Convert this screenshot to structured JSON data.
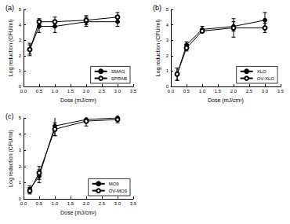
{
  "chart_data": [
    {
      "type": "line",
      "title": "(a)",
      "x_label": "Dose (mJ/cm²)",
      "y_label": "Log reduction (CFU/ml)",
      "xlim": [
        0,
        3.5
      ],
      "xticks": [
        {
          "value": 0,
          "label": "0.0"
        },
        {
          "value": 0.5,
          "label": "0.5"
        },
        {
          "value": 1,
          "label": "1.0"
        },
        {
          "value": 1.5,
          "label": "1.5"
        },
        {
          "value": 2,
          "label": "2.0"
        },
        {
          "value": 2.5,
          "label": "2.5"
        },
        {
          "value": 3,
          "label": "3.0"
        },
        {
          "value": 3.5,
          "label": "3.5"
        }
      ],
      "ylim": [
        0,
        5
      ],
      "yticks": [
        0,
        1,
        2,
        3,
        4,
        5
      ],
      "grid": false,
      "legend": "lower right",
      "x": [
        0.2,
        0.5,
        1,
        2,
        3
      ],
      "series": [
        {
          "name": "SMAG",
          "color": "#000000",
          "marker": "circle",
          "line_style": "solid",
          "values": [
            2.4,
            3.9,
            3.9,
            4.2,
            4.2
          ],
          "errors": [
            0.4,
            0.4,
            0.4,
            0.3,
            0.3
          ]
        },
        {
          "name": "SPRAB",
          "color": "#000000",
          "marker": "open_circle",
          "line_style": "solid",
          "values": [
            2.4,
            4.2,
            4.2,
            4.3,
            4.5
          ],
          "errors": [
            0.3,
            0.2,
            0.3,
            0.3,
            0.3
          ]
        }
      ]
    },
    {
      "type": "line",
      "title": "(b)",
      "x_label": "Dose (mJ/cm²)",
      "y_label": "Log reduction (CFU/ml)",
      "xlim": [
        0,
        3.5
      ],
      "xticks": [
        {
          "value": 0,
          "label": "0.0"
        },
        {
          "value": 0.5,
          "label": "0.5"
        },
        {
          "value": 1,
          "label": "1.0"
        },
        {
          "value": 1.5,
          "label": "1.5"
        },
        {
          "value": 2,
          "label": "2.0"
        },
        {
          "value": 2.5,
          "label": "2.5"
        },
        {
          "value": 3,
          "label": "3.0"
        },
        {
          "value": 3.5,
          "label": "3.5"
        }
      ],
      "ylim": [
        0,
        5
      ],
      "yticks": [
        0,
        1,
        2,
        3,
        4,
        5
      ],
      "grid": false,
      "legend": "lower right",
      "x": [
        0.2,
        0.5,
        1,
        2,
        3
      ],
      "series": [
        {
          "name": "XLO",
          "color": "#000000",
          "marker": "circle",
          "line_style": "solid",
          "values": [
            0.8,
            2.7,
            3.7,
            3.9,
            4.3
          ],
          "errors": [
            0.4,
            0.2,
            0.2,
            0.3,
            0.5
          ]
        },
        {
          "name": "OV-XLO",
          "color": "#000000",
          "marker": "open_circle",
          "line_style": "solid",
          "values": [
            0.8,
            2.5,
            3.6,
            3.8,
            3.8
          ],
          "errors": [
            0.4,
            0.2,
            0.1,
            0.6,
            0.3
          ]
        }
      ]
    },
    {
      "type": "line",
      "title": "(c)",
      "x_label": "Dose (mJ/cm²)",
      "y_label": "Log reduction (CFU/ml)",
      "xlim": [
        0,
        3.5
      ],
      "xticks": [
        {
          "value": 0,
          "label": "0.0"
        },
        {
          "value": 0.5,
          "label": "0.5"
        },
        {
          "value": 1,
          "label": "1.0"
        },
        {
          "value": 1.5,
          "label": "1.5"
        },
        {
          "value": 2,
          "label": "2.0"
        },
        {
          "value": 2.5,
          "label": "2.5"
        },
        {
          "value": 3,
          "label": "3.0"
        },
        {
          "value": 3.5,
          "label": "3.5"
        }
      ],
      "ylim": [
        0,
        5
      ],
      "yticks": [
        0,
        1,
        2,
        3,
        4,
        5
      ],
      "grid": false,
      "legend": "lower right",
      "x": [
        0.2,
        0.5,
        1,
        2,
        3
      ],
      "series": [
        {
          "name": "MO9",
          "color": "#000000",
          "marker": "circle",
          "line_style": "solid",
          "values": [
            0.6,
            1.4,
            4.5,
            4.9,
            5.0
          ],
          "errors": [
            0.2,
            0.4,
            0.6,
            0.2,
            0.1
          ]
        },
        {
          "name": "OV-MO9",
          "color": "#000000",
          "marker": "open_circle",
          "line_style": "solid",
          "values": [
            0.5,
            1.6,
            4.3,
            4.8,
            4.9
          ],
          "errors": [
            0.2,
            0.4,
            0.4,
            0.3,
            0.2
          ]
        }
      ]
    }
  ]
}
